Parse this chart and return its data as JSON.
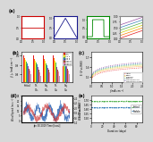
{
  "fig_bg": "#d8d8d8",
  "top_panels": [
    {
      "border_color": "#cc0000",
      "line_color": "#cc0000",
      "signal": "flat",
      "bg": "#ffffff"
    },
    {
      "border_color": "#1a1a8c",
      "line_color": "#1a1a8c",
      "signal": "triangle",
      "bg": "#ffffff"
    },
    {
      "border_color": "#008800",
      "line_color": "#008800",
      "signal": "square",
      "bg": "#ffffff"
    },
    {
      "border_color": "#888888",
      "line_color": "#888888",
      "signal": "diagonal",
      "bg": "#ffffff"
    }
  ],
  "bar_chart": {
    "categories": [
      "Initial",
      "Triangular\nOxide",
      "Square\nOxide",
      "Triangular\nCu",
      "Square\nCu"
    ],
    "series_labels": [
      "0 h",
      "75 h",
      "150 h",
      "300 h",
      "500 h",
      "1000 h",
      "2000 h",
      "3000 h",
      "5000 h"
    ],
    "series_colors": [
      "#e41a1c",
      "#ff7f00",
      "#ffff33",
      "#4daf4a",
      "#377eb8",
      "#984ea3",
      "#a65628",
      "#f781bf",
      "#aaaaaa"
    ],
    "values": [
      [
        1.0,
        1.0,
        1.0,
        1.0,
        1.0
      ],
      [
        0.975,
        0.97,
        0.968,
        0.972,
        0.975
      ],
      [
        0.955,
        0.948,
        0.945,
        0.95,
        0.954
      ],
      [
        0.935,
        0.926,
        0.922,
        0.928,
        0.934
      ],
      [
        0.915,
        0.905,
        0.9,
        0.908,
        0.914
      ],
      [
        0.89,
        0.88,
        0.874,
        0.882,
        0.89
      ],
      [
        0.865,
        0.854,
        0.848,
        0.856,
        0.865
      ],
      [
        0.84,
        0.828,
        0.822,
        0.83,
        0.84
      ],
      [
        0.8,
        0.788,
        0.782,
        0.79,
        0.8
      ]
    ],
    "ylabel": "j / j₀ (mA cm⁻²)",
    "ylim": [
      0.72,
      1.04
    ]
  },
  "polar_chart": {
    "xlabel": "j (mA cm⁻²)",
    "ylabel": "E (V vs RHE)",
    "xlim": [
      0.0,
      2.5
    ],
    "ylim": [
      1.45,
      1.75
    ],
    "series": [
      {
        "label": "Initial",
        "color": "#e41a1c"
      },
      {
        "label": "RuO₂",
        "color": "#ff8c00"
      },
      {
        "label": "Triangle",
        "color": "#cccc00"
      },
      {
        "label": "Square",
        "color": "#4daf4a"
      },
      {
        "label": "Transition Cu",
        "color": "#377eb8"
      },
      {
        "label": "Transition CuZn",
        "color": "#984ea3"
      }
    ]
  },
  "wind_chart": {
    "ylabel_left": "Wind Speed (m s⁻¹)",
    "ylabel_right": "Wind Direction (°)",
    "xlabel": "Jan 30 2019 Time [local]",
    "ylim_left": [
      -2,
      25
    ],
    "ylim_right": [
      1.4,
      2.5
    ],
    "color_main": "#3a6fba",
    "color_secondary": "#cc3333"
  },
  "stability_chart": {
    "xlabel": "Duration (days)",
    "ylabel": "E (V vs RHE)",
    "xlim": [
      0,
      90
    ],
    "ylim": [
      1.45,
      1.75
    ],
    "yticks": [
      1.5,
      1.55,
      1.6,
      1.65,
      1.7
    ],
    "series": [
      {
        "label": "Initial",
        "color": "#4daf4a",
        "value": 1.685
      },
      {
        "label": "Stable",
        "color": "#377eb8",
        "value": 1.615
      }
    ]
  }
}
